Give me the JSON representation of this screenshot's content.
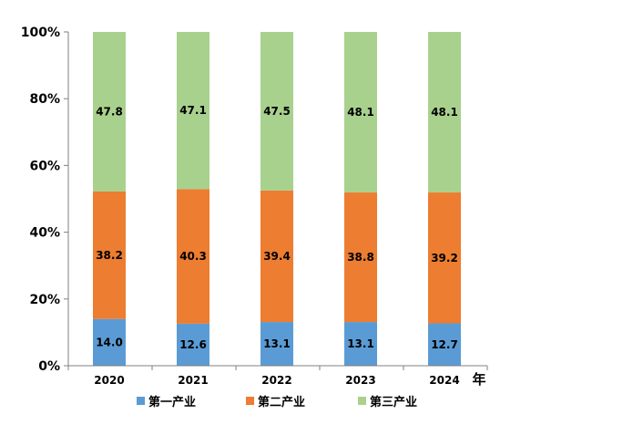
{
  "chart_data": {
    "type": "bar",
    "stacked": true,
    "percent_stacked": true,
    "categories": [
      "2020",
      "2021",
      "2022",
      "2023",
      "2024"
    ],
    "xlabel": "年",
    "ylabel": "",
    "ylim": [
      0,
      100
    ],
    "yticks": [
      "0%",
      "20%",
      "40%",
      "60%",
      "80%",
      "100%"
    ],
    "grid": false,
    "legend_position": "bottom",
    "series": [
      {
        "name": "第一产业",
        "color": "#5b9bd5",
        "values": [
          14.0,
          12.6,
          13.1,
          13.1,
          12.7
        ],
        "labels": [
          "14.0",
          "12.6",
          "13.1",
          "13.1",
          "12.7"
        ]
      },
      {
        "name": "第二产业",
        "color": "#ed7d31",
        "values": [
          38.2,
          40.3,
          39.4,
          38.8,
          39.2
        ],
        "labels": [
          "38.2",
          "40.3",
          "39.4",
          "38.8",
          "39.2"
        ]
      },
      {
        "name": "第三产业",
        "color": "#a9d18e",
        "values": [
          47.8,
          47.1,
          47.5,
          48.1,
          48.1
        ],
        "labels": [
          "47.8",
          "47.1",
          "47.5",
          "48.1",
          "48.1"
        ]
      }
    ]
  }
}
